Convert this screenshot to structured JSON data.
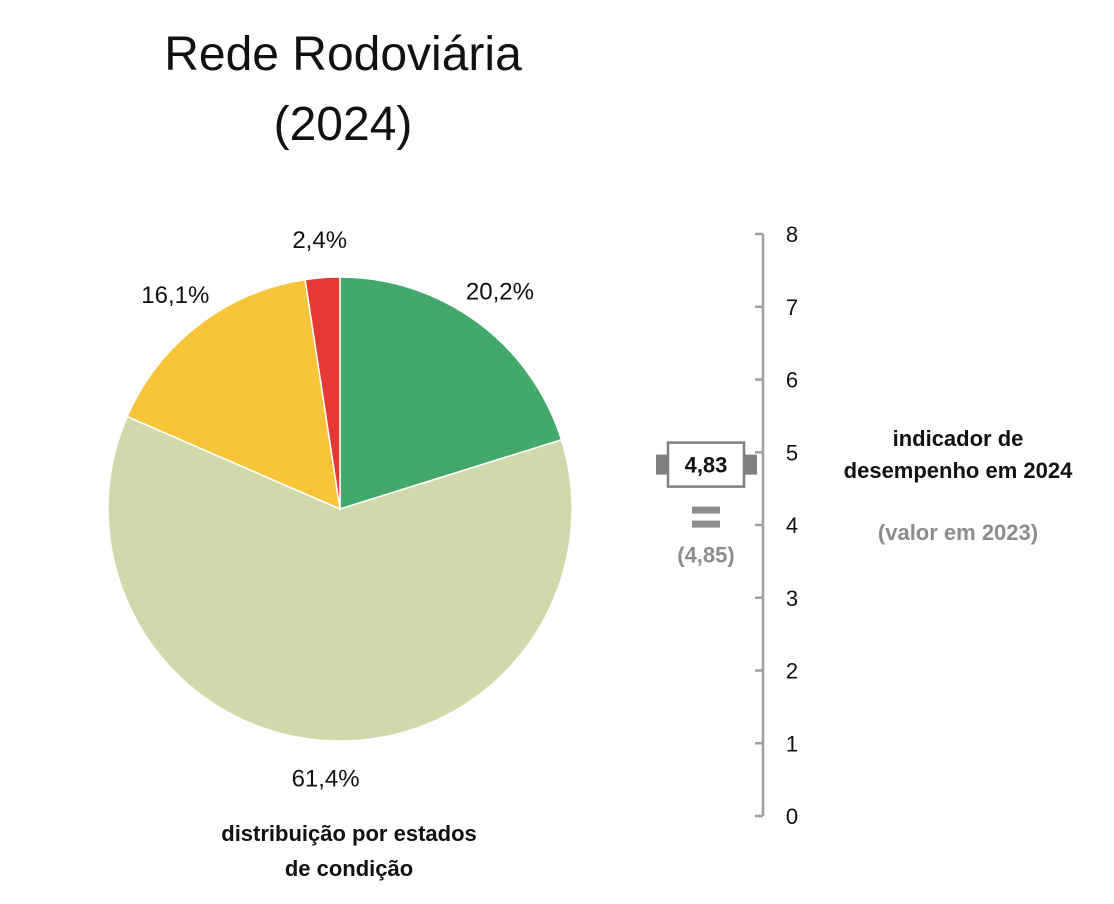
{
  "chart_data": [
    {
      "type": "pie",
      "title_line1": "Rede Rodoviária",
      "title_line2": "(2024)",
      "caption_line1": "distribuição por estados",
      "caption_line2": "de condição",
      "slices": [
        {
          "value": 20.2,
          "label": "20,2%",
          "color": "#43a86b"
        },
        {
          "value": 61.4,
          "label": "61,4%",
          "color": "#d1d9ab"
        },
        {
          "value": 16.1,
          "label": "16,1%",
          "color": "#f7c43a"
        },
        {
          "value": 2.4,
          "label": "2,4%",
          "color": "#e53935"
        }
      ]
    },
    {
      "type": "scale",
      "ylim": [
        0,
        8
      ],
      "ticks": [
        "0",
        "1",
        "2",
        "3",
        "4",
        "5",
        "6",
        "7",
        "8"
      ],
      "value_2024": 4.83,
      "value_2024_label": "4,83",
      "value_2023": 4.85,
      "value_2023_label": "(4,85)",
      "trend": "equal",
      "legend_line1": "indicador de",
      "legend_line2": "desempenho em 2024",
      "legend_sub": "(valor em 2023)",
      "colors": {
        "axis": "#9e9e9e",
        "marker": "#7f7f7f",
        "prev": "#8c8c8c"
      }
    }
  ]
}
